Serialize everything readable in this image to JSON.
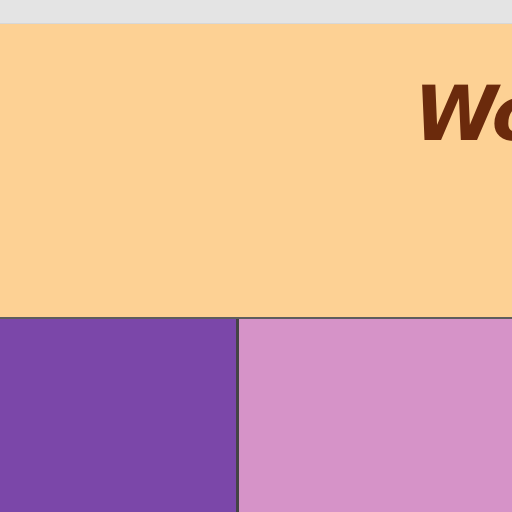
{
  "banner": {
    "title": "Wo",
    "title_color": "#6b2a0c",
    "background": "#fdd194"
  },
  "panels": {
    "left_color": "#7b47a9",
    "right_color": "#d693c8"
  },
  "chrome": {
    "topbar_color": "#e4e4e4"
  }
}
